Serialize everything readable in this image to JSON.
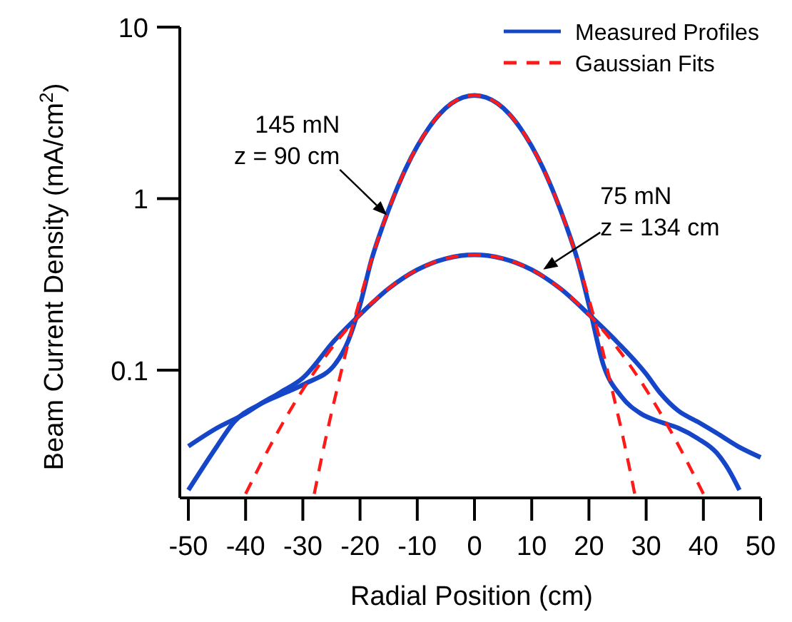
{
  "chart_data": {
    "type": "line",
    "xlabel": "Radial Position (cm)",
    "ylabel": "Beam Current Density (mA/cm$^{2}$)",
    "log": "y",
    "xlim": [
      -51,
      50
    ],
    "ylim": [
      0.018,
      10
    ],
    "xticks": [
      -50,
      -40,
      -30,
      -20,
      -10,
      0,
      10,
      20,
      30,
      40,
      50
    ],
    "yticks": [
      0.1,
      1,
      10
    ],
    "grid": false,
    "legend": "top right",
    "series": [
      {
        "name": "Measured Profiles",
        "color": "#1646c8",
        "line_style": "solid",
        "x": [
          -50,
          -45,
          -42,
          -37.6,
          -33,
          -29.4,
          -24.4,
          -22,
          -20,
          -18,
          -16,
          -14,
          -12,
          -10,
          -8,
          -6,
          -4,
          -2,
          0,
          2,
          4,
          6,
          8,
          10,
          12,
          14,
          16,
          18,
          20,
          22.5,
          25.7,
          29,
          32.4,
          35.6,
          39,
          42.3,
          44.5,
          46.3
        ],
        "values": [
          0.02,
          0.036,
          0.05,
          0.063,
          0.074,
          0.084,
          0.108,
          0.15,
          0.24,
          0.44,
          0.7,
          1.05,
          1.5,
          2.02,
          2.58,
          3.13,
          3.59,
          3.89,
          4.0,
          3.89,
          3.59,
          3.13,
          2.58,
          2.02,
          1.5,
          1.05,
          0.7,
          0.44,
          0.24,
          0.108,
          0.07,
          0.056,
          0.05,
          0.046,
          0.04,
          0.033,
          0.026,
          0.02
        ]
      },
      {
        "color": "#1646c8",
        "line_style": "solid",
        "x": [
          -50,
          -45,
          -40,
          -37.6,
          -34,
          -30,
          -24.4,
          -20,
          -15,
          -10,
          -5,
          0,
          5,
          10,
          15,
          20,
          25,
          30,
          32.4,
          35.6,
          39,
          42.3,
          46,
          50
        ],
        "values": [
          0.036,
          0.046,
          0.056,
          0.063,
          0.074,
          0.09,
          0.15,
          0.211,
          0.299,
          0.385,
          0.447,
          0.47,
          0.447,
          0.385,
          0.299,
          0.211,
          0.145,
          0.095,
          0.074,
          0.058,
          0.05,
          0.043,
          0.036,
          0.031
        ]
      },
      {
        "name": "Gaussian Fits",
        "color": "#ff1a1a",
        "line_style": "dashed",
        "x": [
          -28,
          -26,
          -24,
          -22,
          -20,
          -18,
          -16,
          -14,
          -12,
          -10,
          -8,
          -6,
          -4,
          -2,
          0,
          2,
          4,
          6,
          8,
          10,
          12,
          14,
          16,
          18,
          20,
          22,
          24,
          26,
          28
        ],
        "values": [
          0.019,
          0.04,
          0.078,
          0.147,
          0.26,
          0.44,
          0.7,
          1.05,
          1.5,
          2.02,
          2.58,
          3.13,
          3.59,
          3.89,
          4.0,
          3.89,
          3.59,
          3.13,
          2.58,
          2.02,
          1.5,
          1.05,
          0.7,
          0.44,
          0.26,
          0.147,
          0.078,
          0.04,
          0.019
        ]
      },
      {
        "color": "#ff1a1a",
        "line_style": "dashed",
        "x": [
          -40,
          -35,
          -30,
          -25,
          -20,
          -15,
          -10,
          -5,
          0,
          5,
          10,
          15,
          20,
          25,
          30,
          35,
          40
        ],
        "values": [
          0.019,
          0.04,
          0.077,
          0.134,
          0.211,
          0.299,
          0.385,
          0.447,
          0.47,
          0.447,
          0.385,
          0.299,
          0.211,
          0.134,
          0.077,
          0.04,
          0.019
        ]
      }
    ],
    "annotations": [
      {
        "text": "145 mN\nz = 90 cm",
        "x": -15.3,
        "y": 0.8
      },
      {
        "text": "75 mN\nz = 134 cm",
        "x": 12,
        "y": 0.386
      }
    ]
  }
}
